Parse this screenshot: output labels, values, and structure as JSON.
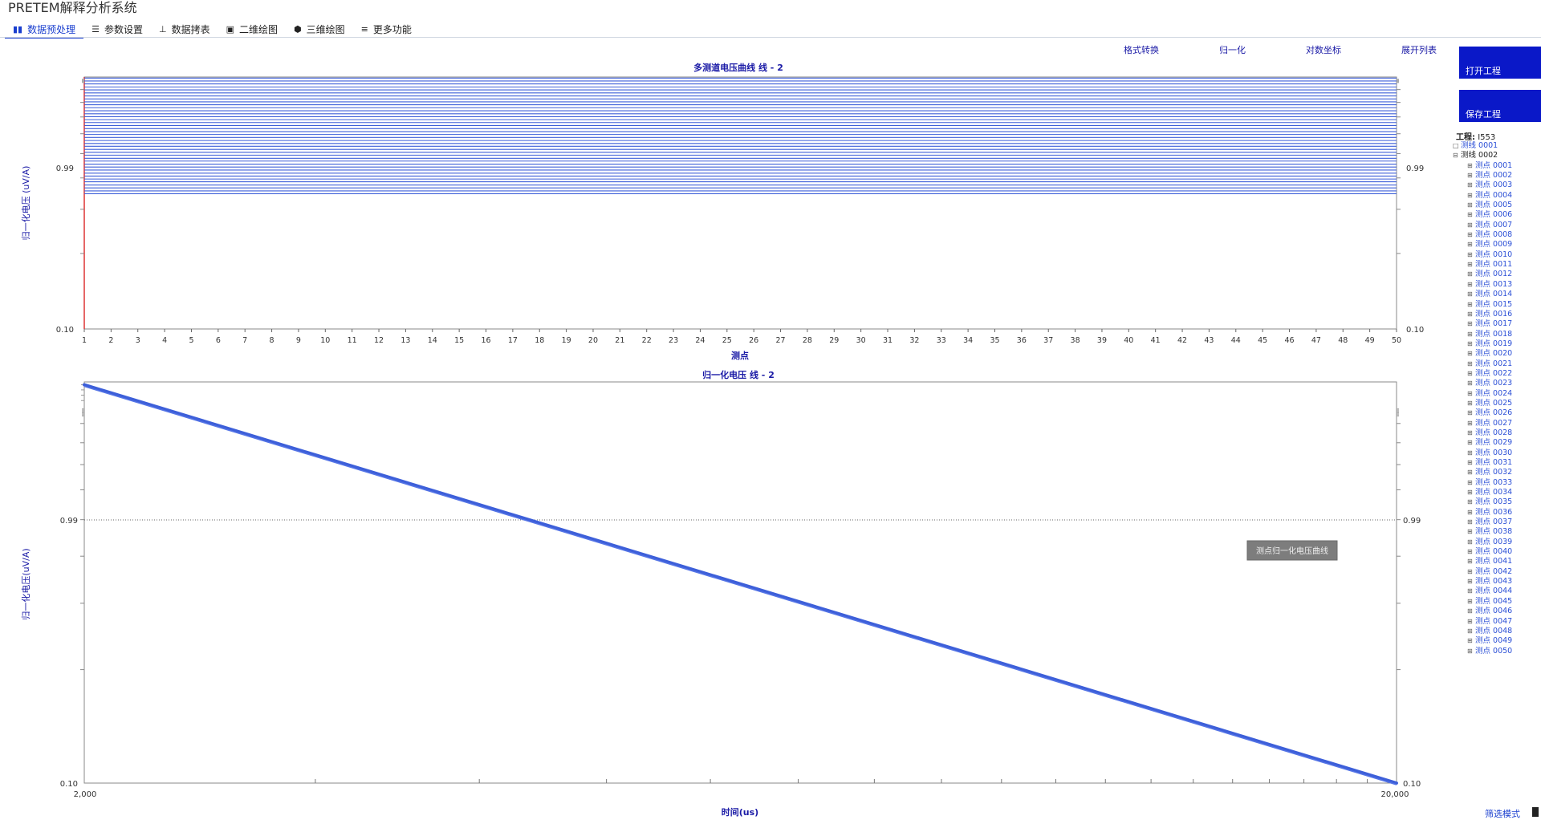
{
  "app": {
    "title": "PRETEM解释分析系统"
  },
  "tabs": [
    {
      "label": "数据预处理",
      "icon": "bar-chart-icon",
      "active": true
    },
    {
      "label": "参数设置",
      "icon": "sliders-icon",
      "active": false
    },
    {
      "label": "数据拷表",
      "icon": "chart-axis-icon",
      "active": false
    },
    {
      "label": "二维绘图",
      "icon": "image-icon",
      "active": false
    },
    {
      "label": "三维绘图",
      "icon": "cube-icon",
      "active": false
    },
    {
      "label": "更多功能",
      "icon": "menu-icon",
      "active": false
    }
  ],
  "toolbar": {
    "format_convert": "格式转换",
    "normalize": "归一化",
    "log_axis": "对数坐标",
    "expand_list": "展开列表"
  },
  "sidebar": {
    "open_project": "打开工程",
    "save_project": "保存工程",
    "project_label": "工程:",
    "project_name": "I553",
    "lines": [
      {
        "label": "测线 0001",
        "expanded": false
      },
      {
        "label": "测线 0002",
        "expanded": true
      }
    ],
    "points": [
      "测点 0001",
      "测点 0002",
      "测点 0003",
      "测点 0004",
      "测点 0005",
      "测点 0006",
      "测点 0007",
      "测点 0008",
      "测点 0009",
      "测点 0010",
      "测点 0011",
      "测点 0012",
      "测点 0013",
      "测点 0014",
      "测点 0015",
      "测点 0016",
      "测点 0017",
      "测点 0018",
      "测点 0019",
      "测点 0020",
      "测点 0021",
      "测点 0022",
      "测点 0023",
      "测点 0024",
      "测点 0025",
      "测点 0026",
      "测点 0027",
      "测点 0028",
      "测点 0029",
      "测点 0030",
      "测点 0031",
      "测点 0032",
      "测点 0033",
      "测点 0034",
      "测点 0035",
      "测点 0036",
      "测点 0037",
      "测点 0038",
      "测点 0039",
      "测点 0040",
      "测点 0041",
      "测点 0042",
      "测点 0043",
      "测点 0044",
      "测点 0045",
      "测点 0046",
      "测点 0047",
      "测点 0048",
      "测点 0049",
      "测点 0050"
    ]
  },
  "status": {
    "filter_mode": "筛选模式"
  },
  "chart_data": [
    {
      "type": "line",
      "title": "多测道电压曲线 线 - 2",
      "xlabel": "测点",
      "ylabel": "归一化电压 (uV/A)",
      "x": [
        1,
        2,
        3,
        4,
        5,
        6,
        7,
        8,
        9,
        10,
        11,
        12,
        13,
        14,
        15,
        16,
        17,
        18,
        19,
        20,
        21,
        22,
        23,
        24,
        25,
        26,
        27,
        28,
        29,
        30,
        31,
        32,
        33,
        34,
        35,
        36,
        37,
        38,
        39,
        40,
        41,
        42,
        43,
        44,
        45,
        46,
        47,
        48,
        49,
        50
      ],
      "xlim": [
        1,
        50
      ],
      "ylim": [
        0.1,
        1.01
      ],
      "y_scale": "log",
      "y_tick_labels": [
        "0.99",
        "0.10"
      ],
      "series_count": 40,
      "series_values": [
        1.0,
        0.974,
        0.948,
        0.922,
        0.897,
        0.873,
        0.849,
        0.826,
        0.804,
        0.783,
        0.762,
        0.741,
        0.721,
        0.702,
        0.683,
        0.665,
        0.647,
        0.629,
        0.612,
        0.596,
        0.58,
        0.564,
        0.549,
        0.535,
        0.52,
        0.506,
        0.493,
        0.479,
        0.467,
        0.454,
        0.442,
        0.43,
        0.418,
        0.407,
        0.396,
        0.386,
        0.375,
        0.365,
        0.355,
        0.346
      ],
      "grid": false
    },
    {
      "type": "line",
      "title": "归一化电压 线 - 2",
      "xlabel": "时间(us)",
      "ylabel": "归一化电压(uV/A)",
      "x_scale": "log",
      "xlim": [
        2000,
        20000
      ],
      "x_tick_labels": [
        "2,000",
        "20,000"
      ],
      "y_scale": "log",
      "ylim": [
        0.1,
        1.16
      ],
      "y_tick_labels": [
        "0.99",
        "0.10"
      ],
      "series": [
        {
          "x": [
            2000,
            20000
          ],
          "y": [
            1.14,
            0.1
          ]
        }
      ],
      "annotation": "测点归一化电压曲线",
      "grid": false,
      "reference_line_y": 0.99
    }
  ]
}
